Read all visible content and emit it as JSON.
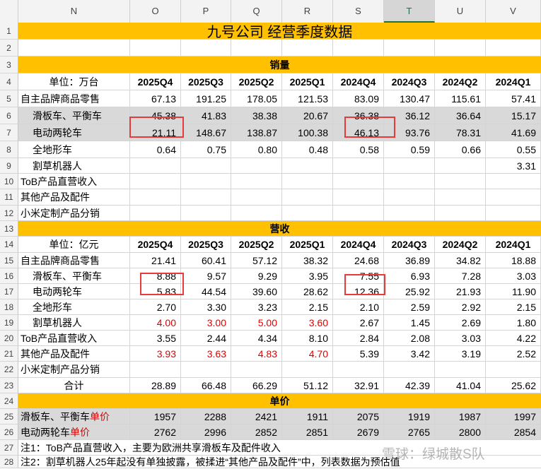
{
  "columns": [
    "N",
    "O",
    "P",
    "Q",
    "R",
    "S",
    "T",
    "U",
    "V"
  ],
  "active_column": "T",
  "row_numbers": [
    "1",
    "2",
    "3",
    "4",
    "5",
    "6",
    "7",
    "8",
    "9",
    "10",
    "11",
    "12",
    "13",
    "14",
    "15",
    "16",
    "17",
    "18",
    "19",
    "20",
    "21",
    "22",
    "23",
    "24",
    "25",
    "26",
    "27",
    "28"
  ],
  "title": "九号公司 经营季度数据",
  "quarters": [
    "2025Q4",
    "2025Q3",
    "2025Q2",
    "2025Q1",
    "2024Q4",
    "2024Q3",
    "2024Q2",
    "2024Q1"
  ],
  "sales": {
    "section": "销量",
    "unit": "单位：万台",
    "rows": [
      {
        "label": "自主品牌商品零售",
        "values": [
          "67.13",
          "191.25",
          "178.05",
          "121.53",
          "83.09",
          "130.47",
          "115.61",
          "57.41"
        ]
      },
      {
        "label": "滑板车、平衡车",
        "values": [
          "45.38",
          "41.83",
          "38.38",
          "20.67",
          "36.38",
          "36.12",
          "36.64",
          "15.17"
        ]
      },
      {
        "label": "电动两轮车",
        "values": [
          "21.11",
          "148.67",
          "138.87",
          "100.38",
          "46.13",
          "93.76",
          "78.31",
          "41.69"
        ]
      },
      {
        "label": "全地形车",
        "values": [
          "0.64",
          "0.75",
          "0.80",
          "0.48",
          "0.58",
          "0.59",
          "0.66",
          "0.55"
        ]
      },
      {
        "label": "割草机器人",
        "values": [
          "",
          "",
          "",
          "",
          "",
          "",
          "",
          "3.31"
        ]
      },
      {
        "label": "ToB产品直营收入",
        "values": [
          "",
          "",
          "",
          "",
          "",
          "",
          "",
          ""
        ]
      },
      {
        "label": "其他产品及配件",
        "values": [
          "",
          "",
          "",
          "",
          "",
          "",
          "",
          ""
        ]
      },
      {
        "label": "小米定制产品分销",
        "values": [
          "",
          "",
          "",
          "",
          "",
          "",
          "",
          ""
        ]
      }
    ]
  },
  "revenue": {
    "section": "营收",
    "unit": "单位：亿元",
    "rows": [
      {
        "label": "自主品牌商品零售",
        "values": [
          "21.41",
          "60.41",
          "57.12",
          "38.32",
          "24.68",
          "36.89",
          "34.82",
          "18.88"
        ]
      },
      {
        "label": "滑板车、平衡车",
        "values": [
          "8.88",
          "9.57",
          "9.29",
          "3.95",
          "7.55",
          "6.93",
          "7.28",
          "3.03"
        ]
      },
      {
        "label": "电动两轮车",
        "values": [
          "5.83",
          "44.54",
          "39.60",
          "28.62",
          "12.36",
          "25.92",
          "21.93",
          "11.90"
        ]
      },
      {
        "label": "全地形车",
        "values": [
          "2.70",
          "3.30",
          "3.23",
          "2.15",
          "2.10",
          "2.59",
          "2.92",
          "2.15"
        ]
      },
      {
        "label": "割草机器人",
        "values": [
          "4.00",
          "3.00",
          "5.00",
          "3.60",
          "2.67",
          "1.45",
          "2.69",
          "1.80"
        ]
      },
      {
        "label": "ToB产品直营收入",
        "values": [
          "3.55",
          "2.44",
          "4.34",
          "8.10",
          "2.84",
          "2.08",
          "3.03",
          "4.22"
        ]
      },
      {
        "label": "其他产品及配件",
        "values": [
          "3.93",
          "3.63",
          "4.83",
          "4.70",
          "5.39",
          "3.42",
          "3.19",
          "2.52"
        ]
      },
      {
        "label": "小米定制产品分销",
        "values": [
          "",
          "",
          "",
          "",
          "",
          "",
          "",
          ""
        ]
      }
    ],
    "total_label": "合计",
    "total_values": [
      "28.89",
      "66.48",
      "66.29",
      "51.12",
      "32.91",
      "42.39",
      "41.04",
      "25.62"
    ]
  },
  "unit_price": {
    "section": "单价",
    "suffix": "单价",
    "rows": [
      {
        "label": "滑板车、平衡车",
        "values": [
          "1957",
          "2288",
          "2421",
          "1911",
          "2075",
          "1919",
          "1987",
          "1997"
        ]
      },
      {
        "label": "电动两轮车",
        "values": [
          "2762",
          "2996",
          "2852",
          "2851",
          "2679",
          "2765",
          "2800",
          "2854"
        ]
      }
    ]
  },
  "notes": [
    "注1：ToB产品直营收入，主要为欧洲共享滑板车及配件收入",
    "注2：割草机器人25年起没有单独披露，被揉进“其他产品及配件”中，列表数据为预估值"
  ],
  "watermark": "雪球：绿城散S队",
  "colors": {
    "section_bg": "#ffc000",
    "gray_bg": "#d9d9d9",
    "highlight_box": "#e83a3a",
    "estimate_text": "#e00000"
  }
}
